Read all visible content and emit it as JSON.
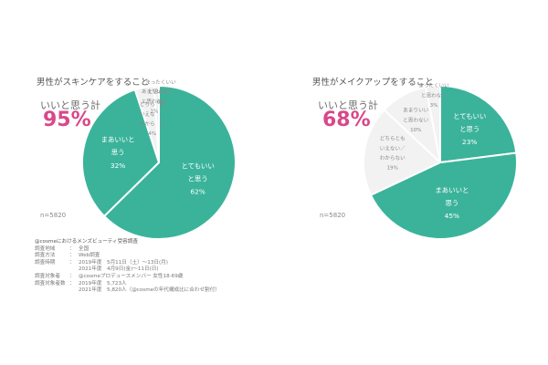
{
  "charts": [
    {
      "title": "男性がスキンケアをすること",
      "good_total_label": "いいと思う計",
      "good_total_value": "95%",
      "n": "n=5820"
    },
    {
      "title": "男性がメイクアップをすること",
      "good_total_label": "いいと思う計",
      "good_total_value": "68%",
      "n": "n=5820"
    }
  ],
  "survey": {
    "title": "@cosmeにおけるメンズビューティ受容調査",
    "rows": [
      {
        "key": "調査地域",
        "values": [
          "全国"
        ]
      },
      {
        "key": "調査方法",
        "values": [
          "Web調査"
        ]
      },
      {
        "key": "調査時期",
        "values": [
          "2019年度　5月11日（土）～13日(月)",
          "2021年度　4月9日(金)～11日(日)"
        ]
      },
      {
        "key": "調査対象者",
        "values": [
          "@cosmeプロデュースメンバー 女性18-69歳"
        ]
      },
      {
        "key": "調査対象者数",
        "values": [
          "2019年度　5,723人",
          "2021年度　5,820人（@cosmeの年代構成比に合わせ割付）"
        ]
      }
    ]
  },
  "chart_data": [
    {
      "type": "pie",
      "title": "男性がスキンケアをすること",
      "slices": [
        {
          "label": "とてもいいと思う",
          "label_lines": [
            "とてもいい",
            "と思う"
          ],
          "value": 62,
          "value_label": "62%",
          "color": "#3bb39b"
        },
        {
          "label": "まあいいと思う",
          "label_lines": [
            "まあいいと",
            "思う"
          ],
          "value": 32,
          "value_label": "32%",
          "color": "#3bb39b"
        },
        {
          "label": "どちらともいえない／わからない",
          "label_lines": [
            "どちらとも",
            "いえない／",
            "わからない"
          ],
          "value": 4,
          "value_label": "4%",
          "color": "#f2f2f2"
        },
        {
          "label": "あまりいいと思わない",
          "label_lines": [
            "あまりいい",
            "と思わない"
          ],
          "value": 1,
          "value_label": "1%",
          "color": "#f2f2f2"
        },
        {
          "label": "まったくいいと思わない",
          "label_lines": [
            "まったくいい",
            "と思わない"
          ],
          "value": 0,
          "value_label": "0%",
          "color": "#f2f2f2"
        }
      ]
    },
    {
      "type": "pie",
      "title": "男性がメイクアップをすること",
      "slices": [
        {
          "label": "とてもいいと思う",
          "label_lines": [
            "とてもいい",
            "と思う"
          ],
          "value": 23,
          "value_label": "23%",
          "color": "#3bb39b"
        },
        {
          "label": "まあいいと思う",
          "label_lines": [
            "まあいいと",
            "思う"
          ],
          "value": 45,
          "value_label": "45%",
          "color": "#3bb39b"
        },
        {
          "label": "どちらともいえない／わからない",
          "label_lines": [
            "どちらとも",
            "いえない／",
            "わからない"
          ],
          "value": 19,
          "value_label": "19%",
          "color": "#f2f2f2"
        },
        {
          "label": "あまりいいと思わない",
          "label_lines": [
            "あまりいい",
            "と思わない"
          ],
          "value": 10,
          "value_label": "10%",
          "color": "#f2f2f2"
        },
        {
          "label": "まったくいいと思わない",
          "label_lines": [
            "まったくいい",
            "と思わない"
          ],
          "value": 3,
          "value_label": "3%",
          "color": "#f2f2f2"
        }
      ]
    }
  ]
}
